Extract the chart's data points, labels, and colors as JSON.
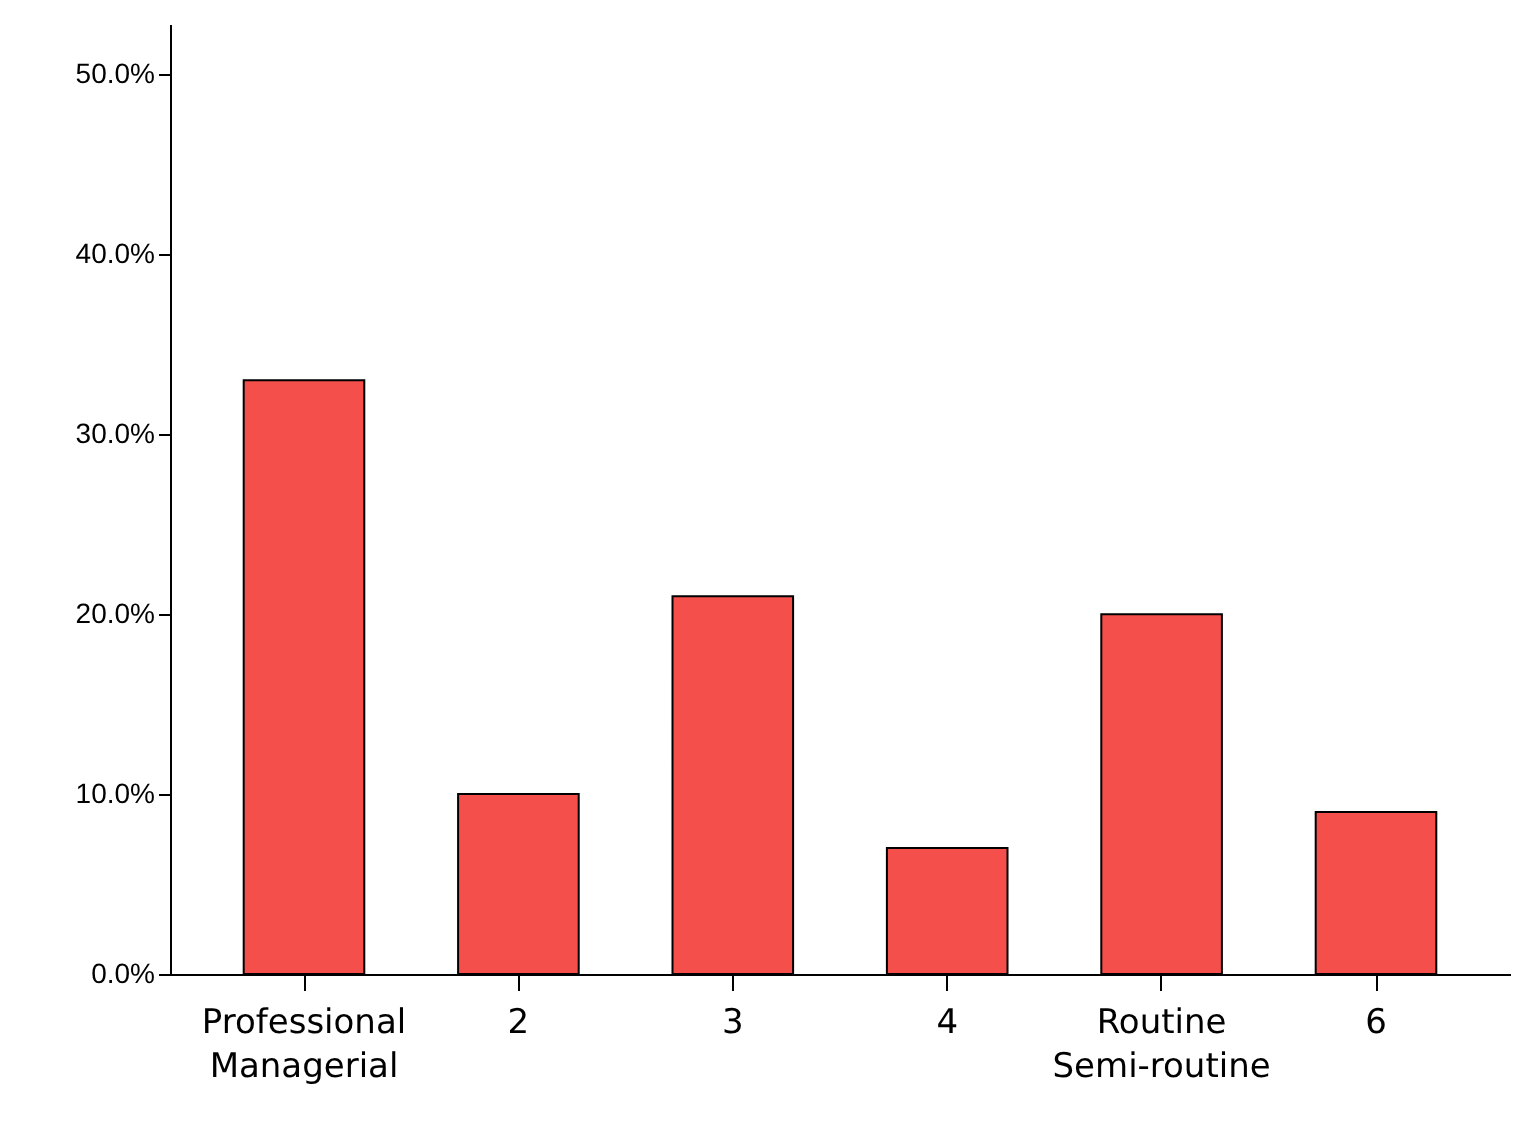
{
  "chart_data": {
    "type": "bar",
    "categories": [
      "Professional\nManagerial",
      "2",
      "3",
      "4",
      "Routine\nSemi-routine",
      "6"
    ],
    "values": [
      33,
      10,
      21,
      7,
      20,
      9
    ],
    "color": "#f44f4a",
    "ylim": [
      0,
      52.8
    ],
    "yticks": [
      {
        "value": 0,
        "label": "0.0%"
      },
      {
        "value": 10,
        "label": "10.0%"
      },
      {
        "value": 20,
        "label": "20.0%"
      },
      {
        "value": 30,
        "label": "30.0%"
      },
      {
        "value": 40,
        "label": "40.0%"
      },
      {
        "value": 50,
        "label": "50.0%"
      }
    ],
    "grid": false
  }
}
